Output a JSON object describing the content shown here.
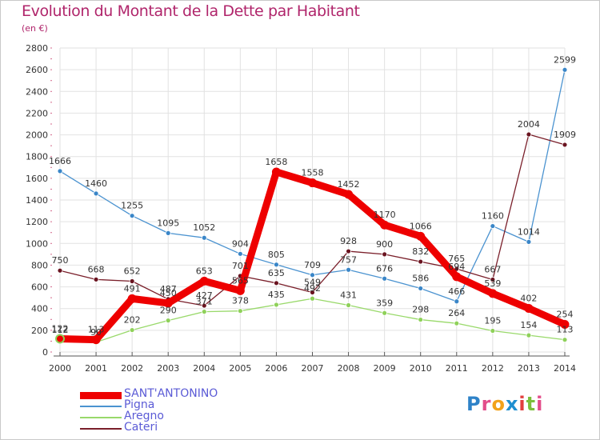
{
  "title": "Evolution du Montant de la Dette par Habitant",
  "unit_label": "(en €)",
  "logo_text": "Proxiti",
  "chart_data": {
    "type": "line",
    "title": "Evolution du Montant de la Dette par Habitant",
    "ylabel": "(en €)",
    "xlabel": "",
    "x": [
      "2000",
      "2001",
      "2002",
      "2003",
      "2004",
      "2005",
      "2006",
      "2007",
      "2008",
      "2009",
      "2010",
      "2011",
      "2012",
      "2013",
      "2014"
    ],
    "ylim": [
      0,
      2800
    ],
    "yticks": [
      0,
      200,
      400,
      600,
      800,
      1000,
      1200,
      1400,
      1600,
      1800,
      2000,
      2200,
      2400,
      2600,
      2800
    ],
    "grid": true,
    "legend": "bottom-left",
    "series": [
      {
        "name": "SANT'ANTONINO",
        "color": "#ee0000",
        "values": [
          122,
          113,
          491,
          450,
          653,
          565,
          1658,
          1558,
          1452,
          1170,
          1066,
          694,
          539,
          402,
          254
        ]
      },
      {
        "name": "Pigna",
        "color": "#4b93d0",
        "values": [
          1666,
          1460,
          1255,
          1095,
          1052,
          904,
          805,
          709,
          757,
          676,
          586,
          466,
          1160,
          1014,
          2599
        ]
      },
      {
        "name": "Aregno",
        "color": "#99d96a",
        "values": [
          112,
          90,
          202,
          290,
          371,
          378,
          435,
          492,
          431,
          359,
          298,
          264,
          195,
          154,
          113
        ]
      },
      {
        "name": "Cateri",
        "color": "#7a1f2a",
        "values": [
          750,
          668,
          652,
          487,
          427,
          701,
          635,
          549,
          928,
          900,
          832,
          765,
          667,
          2004,
          1909
        ]
      }
    ]
  }
}
